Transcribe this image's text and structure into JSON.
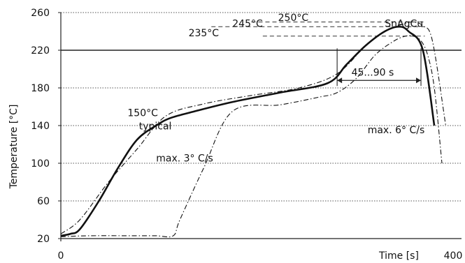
{
  "chart_data": {
    "type": "line",
    "title": "",
    "xlabel": "Time [s]",
    "ylabel": "Temperature [°C]",
    "xlim": [
      0,
      400
    ],
    "ylim": [
      20,
      260
    ],
    "y_ticks": [
      20,
      60,
      100,
      140,
      180,
      220,
      260
    ],
    "x_tick_labels": [
      "0",
      "400"
    ],
    "grid": "horizontal dotted",
    "reference_line": {
      "y": 220,
      "label": "SnAgCu"
    },
    "series": [
      {
        "style": "solid",
        "x": [
          0,
          10,
          20,
          40,
          60,
          80,
          100,
          115,
          140,
          180,
          230,
          280,
          300,
          320,
          340,
          355,
          365,
          380,
          392
        ],
        "y": [
          23,
          25,
          30,
          60,
          95,
          125,
          140,
          148,
          155,
          165,
          175,
          185,
          205,
          225,
          240,
          245,
          240,
          220,
          140
        ]
      },
      {
        "style": "dashdot",
        "x": [
          0,
          20,
          50,
          80,
          110,
          150,
          200,
          250,
          290,
          320,
          340,
          360,
          370,
          380,
          390,
          404
        ],
        "y": [
          25,
          40,
          80,
          115,
          150,
          163,
          172,
          180,
          195,
          225,
          240,
          248,
          250,
          246,
          230,
          140
        ]
      },
      {
        "style": "dashdot",
        "x": [
          0,
          30,
          80,
          100,
          118,
          125,
          150,
          180,
          230,
          270,
          290,
          310,
          330,
          350,
          362,
          370,
          378,
          385,
          392,
          400
        ],
        "y": [
          22,
          23,
          23,
          23,
          23,
          40,
          95,
          155,
          162,
          170,
          175,
          190,
          215,
          230,
          235,
          235,
          230,
          215,
          180,
          100
        ]
      }
    ],
    "annotations": [
      {
        "text": "150°C",
        "x": 70,
        "y": 150
      },
      {
        "text": "typical",
        "x": 82,
        "y": 136
      },
      {
        "text": "235°C",
        "x": 134,
        "y": 235
      },
      {
        "text": "245°C",
        "x": 180,
        "y": 245
      },
      {
        "text": "250°C",
        "x": 228,
        "y": 251
      },
      {
        "text": "SnAgCu",
        "x": 340,
        "y": 245
      },
      {
        "text": "45...90 s",
        "x": 305,
        "y": 193
      },
      {
        "text": "max. 3° C/s",
        "x": 100,
        "y": 102
      },
      {
        "text": "max. 6° C/s",
        "x": 322,
        "y": 132
      }
    ],
    "peak_reference_levels": [
      235,
      245,
      250
    ],
    "interval_marker": {
      "from_x": 290,
      "to_x": 378,
      "y": 185
    }
  }
}
